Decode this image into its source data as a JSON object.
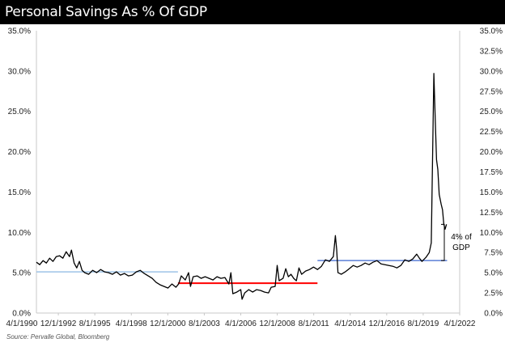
{
  "header": {
    "title": "Personal Savings As % Of GDP"
  },
  "footer": {
    "source": "Source: Pervalle Global, Bloomberg"
  },
  "colors": {
    "series": "#000000",
    "avg_1990s": "#9dc3e6",
    "avg_2000s": "#ff0000",
    "avg_2010s": "#5b7fd6",
    "title_bg": "#000000"
  },
  "chart_data": {
    "type": "line",
    "title": "Personal Savings As % Of GDP",
    "xlabel": "",
    "ylabel": "",
    "x_tick_labels": [
      "4/1/1990",
      "12/1/1992",
      "8/1/1995",
      "4/1/1998",
      "12/1/2000",
      "8/1/2003",
      "4/1/2006",
      "12/1/2008",
      "8/1/2011",
      "4/1/2014",
      "12/1/2016",
      "8/1/2019",
      "4/1/2022"
    ],
    "y_tick_labels_left": [
      "0.0%",
      "5.0%",
      "10.0%",
      "15.0%",
      "20.0%",
      "25.0%",
      "30.0%",
      "35.0%"
    ],
    "y_tick_labels_right": [
      "0.0%",
      "2.5%",
      "5.0%",
      "7.5%",
      "10.0%",
      "12.5%",
      "15.0%",
      "17.5%",
      "20.0%",
      "22.5%",
      "25.0%",
      "27.5%",
      "30.0%",
      "32.5%",
      "35.0%"
    ],
    "ylim": [
      0,
      35
    ],
    "grid": false,
    "legend": "none",
    "series": [
      {
        "values": [
          [
            1990.25,
            6.3
          ],
          [
            1990.5,
            6.0
          ],
          [
            1990.75,
            6.5
          ],
          [
            1991.0,
            6.2
          ],
          [
            1991.25,
            6.8
          ],
          [
            1991.5,
            6.4
          ],
          [
            1991.75,
            7.0
          ],
          [
            1992.0,
            7.1
          ],
          [
            1992.25,
            6.8
          ],
          [
            1992.5,
            7.6
          ],
          [
            1992.75,
            7.0
          ],
          [
            1992.9,
            7.8
          ],
          [
            1993.1,
            6.2
          ],
          [
            1993.3,
            5.6
          ],
          [
            1993.5,
            6.4
          ],
          [
            1993.7,
            5.3
          ],
          [
            1993.9,
            5.0
          ],
          [
            1994.2,
            4.8
          ],
          [
            1994.5,
            5.3
          ],
          [
            1994.8,
            5.0
          ],
          [
            1995.1,
            5.4
          ],
          [
            1995.4,
            5.1
          ],
          [
            1995.7,
            5.0
          ],
          [
            1996.0,
            4.8
          ],
          [
            1996.3,
            5.1
          ],
          [
            1996.6,
            4.7
          ],
          [
            1996.9,
            4.9
          ],
          [
            1997.2,
            4.6
          ],
          [
            1997.5,
            4.7
          ],
          [
            1997.8,
            5.1
          ],
          [
            1998.1,
            5.3
          ],
          [
            1998.4,
            4.9
          ],
          [
            1998.7,
            4.6
          ],
          [
            1999.0,
            4.3
          ],
          [
            1999.3,
            3.8
          ],
          [
            1999.6,
            3.5
          ],
          [
            1999.9,
            3.3
          ],
          [
            2000.2,
            3.1
          ],
          [
            2000.5,
            3.6
          ],
          [
            2000.8,
            3.2
          ],
          [
            2001.0,
            3.6
          ],
          [
            2001.2,
            4.6
          ],
          [
            2001.5,
            4.1
          ],
          [
            2001.75,
            5.0
          ],
          [
            2001.9,
            3.3
          ],
          [
            2002.1,
            4.5
          ],
          [
            2002.4,
            4.6
          ],
          [
            2002.7,
            4.3
          ],
          [
            2003.0,
            4.5
          ],
          [
            2003.3,
            4.3
          ],
          [
            2003.6,
            4.1
          ],
          [
            2003.9,
            4.5
          ],
          [
            2004.2,
            4.3
          ],
          [
            2004.5,
            4.4
          ],
          [
            2004.8,
            3.6
          ],
          [
            2004.95,
            5.0
          ],
          [
            2005.1,
            2.4
          ],
          [
            2005.4,
            2.6
          ],
          [
            2005.7,
            2.9
          ],
          [
            2005.8,
            1.7
          ],
          [
            2006.0,
            2.5
          ],
          [
            2006.3,
            2.9
          ],
          [
            2006.6,
            2.6
          ],
          [
            2006.9,
            2.9
          ],
          [
            2007.2,
            2.8
          ],
          [
            2007.5,
            2.6
          ],
          [
            2007.8,
            2.5
          ],
          [
            2008.0,
            3.2
          ],
          [
            2008.3,
            3.3
          ],
          [
            2008.45,
            5.9
          ],
          [
            2008.6,
            4.0
          ],
          [
            2008.9,
            4.3
          ],
          [
            2009.1,
            5.5
          ],
          [
            2009.3,
            4.5
          ],
          [
            2009.5,
            4.8
          ],
          [
            2009.7,
            4.3
          ],
          [
            2009.9,
            4.0
          ],
          [
            2010.1,
            5.6
          ],
          [
            2010.3,
            4.8
          ],
          [
            2010.6,
            5.2
          ],
          [
            2010.9,
            5.4
          ],
          [
            2011.2,
            5.7
          ],
          [
            2011.5,
            5.4
          ],
          [
            2011.8,
            5.8
          ],
          [
            2012.1,
            6.6
          ],
          [
            2012.4,
            6.4
          ],
          [
            2012.7,
            7.0
          ],
          [
            2012.85,
            9.6
          ],
          [
            2012.95,
            7.9
          ],
          [
            2013.05,
            5.0
          ],
          [
            2013.3,
            4.8
          ],
          [
            2013.6,
            5.1
          ],
          [
            2013.9,
            5.5
          ],
          [
            2014.2,
            5.9
          ],
          [
            2014.5,
            5.7
          ],
          [
            2014.8,
            5.9
          ],
          [
            2015.1,
            6.2
          ],
          [
            2015.4,
            6.0
          ],
          [
            2015.7,
            6.3
          ],
          [
            2016.0,
            6.5
          ],
          [
            2016.3,
            6.1
          ],
          [
            2016.6,
            6.0
          ],
          [
            2016.9,
            5.9
          ],
          [
            2017.2,
            5.8
          ],
          [
            2017.5,
            5.6
          ],
          [
            2017.8,
            5.9
          ],
          [
            2018.1,
            6.6
          ],
          [
            2018.4,
            6.4
          ],
          [
            2018.7,
            6.7
          ],
          [
            2019.0,
            7.3
          ],
          [
            2019.2,
            6.8
          ],
          [
            2019.4,
            6.4
          ],
          [
            2019.7,
            6.9
          ],
          [
            2019.95,
            7.5
          ],
          [
            2020.1,
            8.7
          ],
          [
            2020.3,
            29.7
          ],
          [
            2020.4,
            24.0
          ],
          [
            2020.5,
            19.0
          ],
          [
            2020.6,
            17.8
          ],
          [
            2020.7,
            14.7
          ],
          [
            2020.85,
            13.5
          ],
          [
            2020.95,
            12.8
          ],
          [
            2021.05,
            11.0
          ],
          [
            2021.15,
            10.4
          ],
          [
            2021.25,
            11.0
          ]
        ]
      }
    ],
    "reference_lines": [
      {
        "value": 5.1,
        "x_start": 1990.25,
        "x_end": 2000.95
      },
      {
        "value": 3.7,
        "x_start": 2000.95,
        "x_end": 2011.5
      },
      {
        "value": 6.5,
        "x_start": 2011.5,
        "x_end": 2021.3
      }
    ],
    "annotations": [
      {
        "text_lines": [
          "4% of",
          "GDP"
        ],
        "from_value": 6.5,
        "to_value": 11.0
      }
    ]
  }
}
